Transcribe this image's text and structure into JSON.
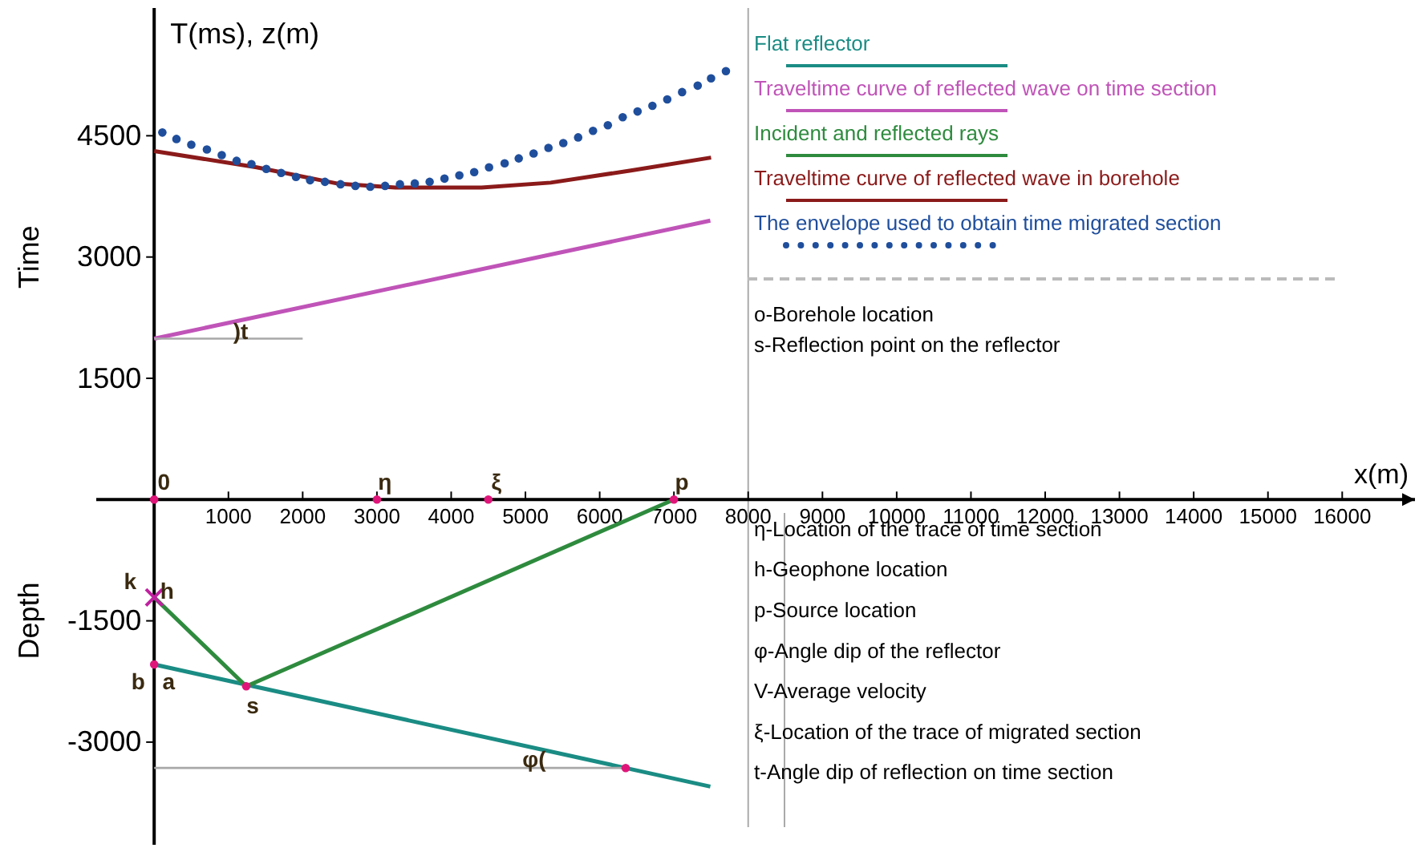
{
  "chart_data": {
    "type": "line",
    "xlabel": "x(m)",
    "ylabel": "T(ms), z(m)",
    "xlim": [
      -780,
      16980
    ],
    "ylim": [
      -4270,
      6080
    ],
    "xticks": [
      1000,
      2000,
      3000,
      4000,
      5000,
      6000,
      7000,
      8000,
      9000,
      10000,
      11000,
      12000,
      13000,
      14000,
      15000,
      16000
    ],
    "yticks": [
      -3000,
      -1500,
      1500,
      3000,
      4500
    ],
    "legend": "right",
    "grid": false,
    "ref_lines": [
      {
        "axis": "x",
        "value": 8000,
        "color": "#aaaaaa"
      }
    ],
    "series": [
      {
        "name": "Flat reflector",
        "color": "#1a8c84",
        "x": [
          0,
          7490
        ],
        "values": [
          -2040,
          -3550
        ]
      },
      {
        "name": "Traveltime curve of reflected wave on time section",
        "color": "#c054b8",
        "x": [
          0,
          7490
        ],
        "values": [
          1990,
          3450
        ]
      },
      {
        "name": "Incident and reflected rays",
        "color": "#2e8b3e",
        "x": [
          0,
          1240,
          7000
        ],
        "values": [
          -1210,
          -2310,
          0
        ]
      },
      {
        "name": "Traveltime curve of reflected wave in borehole",
        "color": "#8b1a1a",
        "x": [
          0,
          1380,
          2460,
          3250,
          4410,
          5340,
          6420,
          7500
        ],
        "values": [
          4310,
          4110,
          3910,
          3860,
          3860,
          3920,
          4070,
          4230
        ]
      },
      {
        "name": "The envelope used to obtain time migrated section",
        "type": "scatter",
        "marker": "circle",
        "color": "#1f4e9c",
        "x": [
          110,
          300,
          500,
          710,
          910,
          1110,
          1310,
          1510,
          1710,
          1910,
          2100,
          2300,
          2510,
          2710,
          2910,
          3110,
          3310,
          3510,
          3710,
          3910,
          4110,
          4310,
          4510,
          4720,
          4910,
          5110,
          5310,
          5510,
          5710,
          5910,
          6110,
          6310,
          6510,
          6710,
          6910,
          7110,
          7320,
          7500,
          7700
        ],
        "values": [
          4540,
          4460,
          4390,
          4330,
          4260,
          4190,
          4150,
          4090,
          4040,
          3990,
          3950,
          3930,
          3900,
          3880,
          3870,
          3880,
          3900,
          3910,
          3930,
          3970,
          4010,
          4050,
          4110,
          4160,
          4220,
          4280,
          4350,
          4410,
          4480,
          4560,
          4630,
          4730,
          4800,
          4870,
          4950,
          5040,
          5120,
          5210,
          5300
        ]
      },
      {
        "color": "#a8a8a8",
        "x": [
          0,
          2000
        ],
        "values": [
          1990,
          1990
        ]
      },
      {
        "color": "#a8a8a8",
        "x": [
          0,
          6350
        ],
        "values": [
          -3320,
          -3320
        ]
      },
      {
        "type": "scatter",
        "marker": "circle",
        "color": "#e0157a",
        "x": [
          0,
          3000,
          4500,
          7000,
          0,
          1240,
          6350
        ],
        "values": [
          0,
          0,
          0,
          0,
          -2040,
          -2310,
          -3320
        ]
      },
      {
        "type": "scatter",
        "marker": "cross",
        "color": "#c020a0",
        "x": [
          0
        ],
        "values": [
          -1210
        ]
      }
    ],
    "annotations": [
      {
        "text": "0",
        "x": 0,
        "y": 0
      },
      {
        "text": "η",
        "x": 3000,
        "y": 0
      },
      {
        "text": "ξ",
        "x": 4500,
        "y": 0
      },
      {
        "text": "p",
        "x": 7000,
        "y": 0
      },
      {
        "text": "k",
        "x": 0,
        "y": -1210
      },
      {
        "text": "h",
        "x": 0,
        "y": -1210
      },
      {
        "text": "b",
        "x": 0,
        "y": -2040
      },
      {
        "text": "a",
        "x": 0,
        "y": -2040
      },
      {
        "text": "s",
        "x": 1240,
        "y": -2310
      },
      "φ(",
      ")t",
      "Time",
      "Depth",
      "o-Borehole location",
      "s-Reflection point on the reflector",
      "η-Location of the trace of time section",
      "h-Geophone location",
      "p-Source location",
      "φ-Angle dip of the reflector",
      "V-Average velocity",
      "ξ-Location of the trace of migrated section",
      "t-Angle dip of reflection on time section"
    ]
  }
}
